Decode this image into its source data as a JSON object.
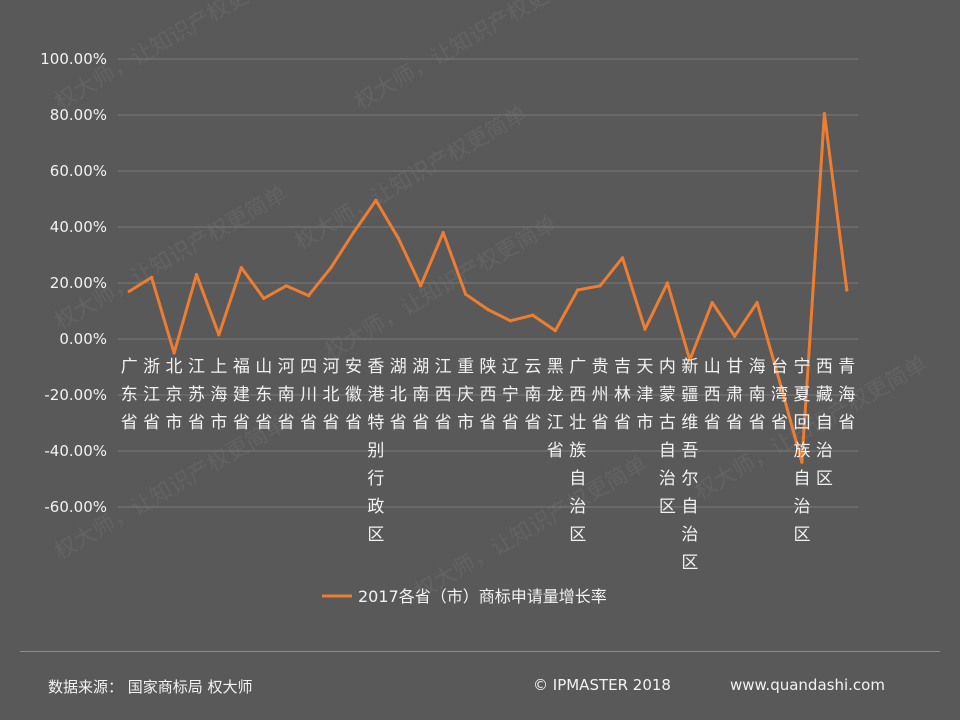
{
  "chart_data": {
    "type": "line",
    "title": "",
    "xlabel": "",
    "ylabel": "",
    "ylim": [
      -0.6,
      1.0
    ],
    "y_ticks": [
      "100.00%",
      "80.00%",
      "60.00%",
      "40.00%",
      "20.00%",
      "0.00%",
      "-20.00%",
      "-40.00%",
      "-60.00%"
    ],
    "grid": true,
    "legend_position": "bottom",
    "categories": [
      "广东省",
      "浙江省",
      "北京市",
      "江苏省",
      "上海市",
      "福建省",
      "山东省",
      "河南省",
      "四川省",
      "河北省",
      "安徽省",
      "香港特别行政区",
      "湖北省",
      "湖南省",
      "江西省",
      "重庆市",
      "陕西省",
      "辽宁省",
      "云南省",
      "黑龙江省",
      "广西壮族自治区",
      "贵州省",
      "吉林省",
      "天津市",
      "内蒙古自治区",
      "新疆维吾尔自治区",
      "山西省",
      "甘肃省",
      "海南省",
      "台湾省",
      "宁夏回族自治区",
      "西藏自治区",
      "青海省"
    ],
    "series": [
      {
        "name": "2017各省（市）商标申请量增长率",
        "color": "#ed7d31",
        "values": [
          0.17,
          0.22,
          -0.05,
          0.23,
          0.015,
          0.255,
          0.145,
          0.19,
          0.155,
          0.255,
          0.38,
          0.495,
          0.36,
          0.19,
          0.38,
          0.16,
          0.105,
          0.065,
          0.085,
          0.03,
          0.175,
          0.19,
          0.29,
          0.035,
          0.2,
          -0.075,
          0.13,
          0.01,
          0.13,
          -0.15,
          -0.44,
          0.805,
          0.175
        ]
      }
    ]
  },
  "footer": {
    "source": "数据来源： 国家商标局  权大师",
    "copyright": "© IPMASTER  2018",
    "website": "www.quandashi.com"
  },
  "watermark": {
    "text": "权大师，让知识产权更简单",
    "color": "#6a6a6a"
  },
  "colors": {
    "background": "#595959",
    "grid": "#7a7a7a",
    "line": "#ed7d31",
    "text": "#f2f2f2"
  }
}
